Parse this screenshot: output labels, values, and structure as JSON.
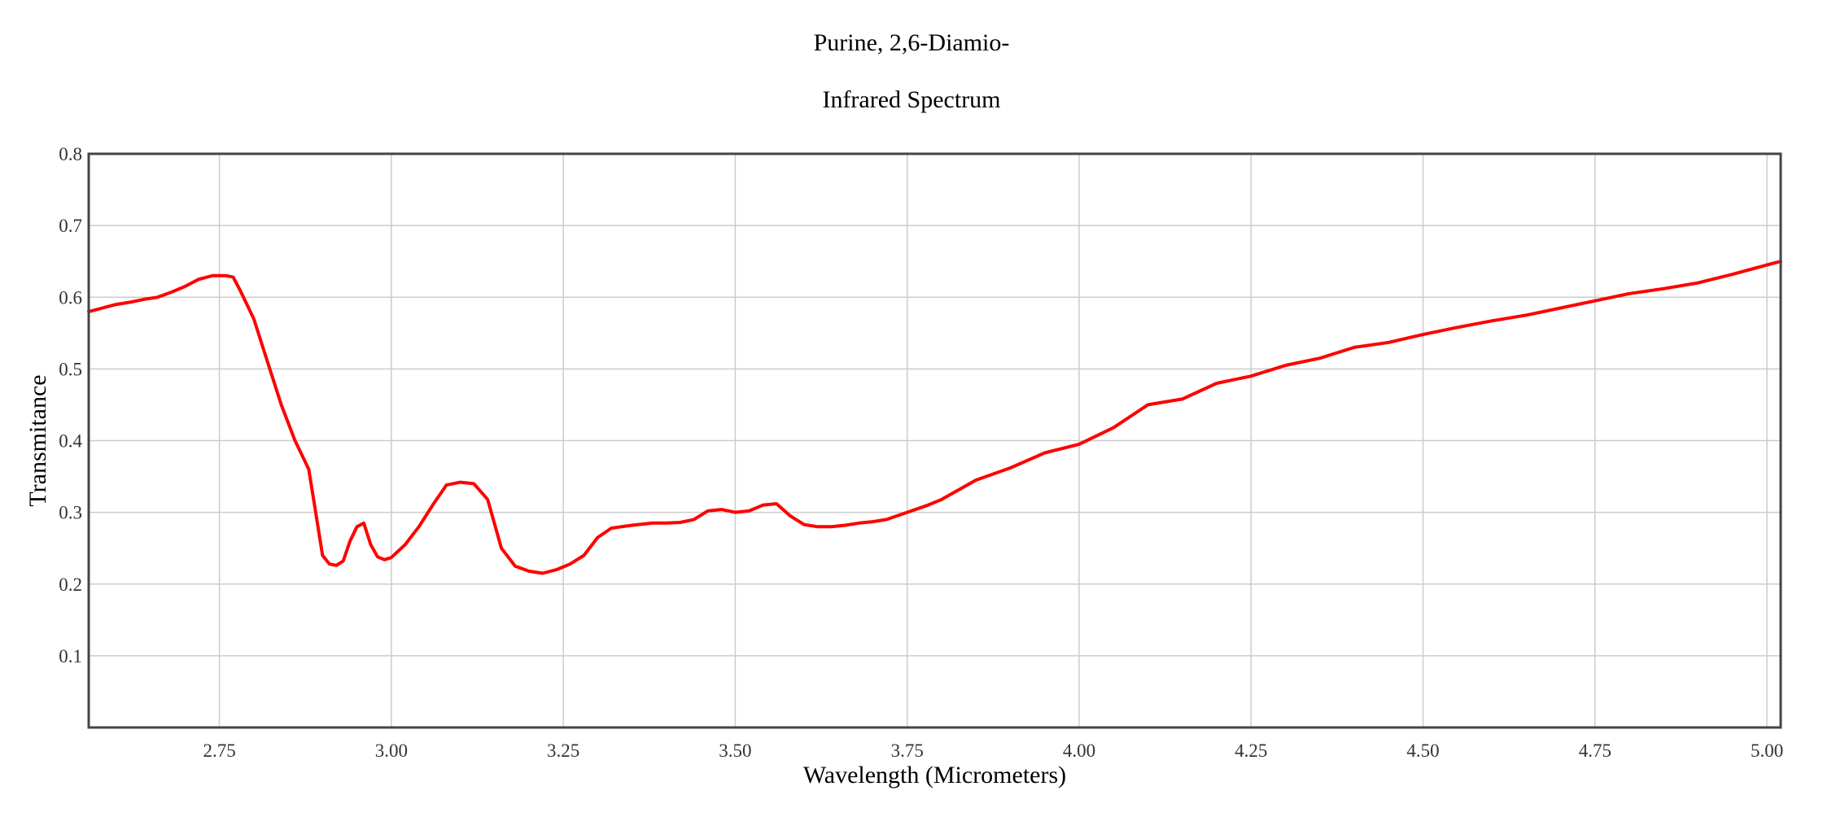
{
  "chart_data": {
    "type": "line",
    "title": "Purine, 2,6-Diamio-",
    "subtitle": "Infrared Spectrum",
    "xlabel": "Wavelength (Micrometers)",
    "ylabel": "Transmitance",
    "xlim": [
      2.56,
      5.02
    ],
    "ylim": [
      0.0,
      0.8
    ],
    "x_ticks": [
      2.75,
      3.0,
      3.25,
      3.5,
      3.75,
      4.0,
      4.25,
      4.5,
      4.75,
      5.0
    ],
    "x_tick_labels": [
      "2.75",
      "3.00",
      "3.25",
      "3.50",
      "3.75",
      "4.00",
      "4.25",
      "4.50",
      "4.75",
      "5.00"
    ],
    "y_ticks": [
      0.1,
      0.2,
      0.3,
      0.4,
      0.5,
      0.6,
      0.7,
      0.8
    ],
    "y_tick_labels": [
      "0.1",
      "0.2",
      "0.3",
      "0.4",
      "0.5",
      "0.6",
      "0.7",
      "0.8"
    ],
    "grid": true,
    "line_color": "#ff0000",
    "series": [
      {
        "x": [
          2.56,
          2.58,
          2.6,
          2.62,
          2.64,
          2.66,
          2.68,
          2.7,
          2.72,
          2.74,
          2.76,
          2.77,
          2.78,
          2.8,
          2.82,
          2.84,
          2.86,
          2.87,
          2.88,
          2.89,
          2.9,
          2.91,
          2.92,
          2.93,
          2.94,
          2.95,
          2.96,
          2.97,
          2.98,
          2.99,
          3.0,
          3.02,
          3.04,
          3.06,
          3.08,
          3.1,
          3.12,
          3.14,
          3.16,
          3.18,
          3.2,
          3.22,
          3.24,
          3.26,
          3.28,
          3.3,
          3.32,
          3.35,
          3.38,
          3.4,
          3.42,
          3.44,
          3.46,
          3.48,
          3.5,
          3.52,
          3.54,
          3.56,
          3.58,
          3.6,
          3.62,
          3.64,
          3.66,
          3.68,
          3.7,
          3.72,
          3.75,
          3.78,
          3.8,
          3.85,
          3.9,
          3.95,
          4.0,
          4.05,
          4.1,
          4.15,
          4.2,
          4.25,
          4.3,
          4.35,
          4.4,
          4.45,
          4.5,
          4.55,
          4.6,
          4.65,
          4.7,
          4.75,
          4.8,
          4.85,
          4.9,
          4.95,
          5.0,
          5.02
        ],
        "y": [
          0.58,
          0.585,
          0.59,
          0.593,
          0.597,
          0.6,
          0.607,
          0.615,
          0.625,
          0.63,
          0.63,
          0.628,
          0.61,
          0.57,
          0.51,
          0.45,
          0.4,
          0.38,
          0.36,
          0.3,
          0.24,
          0.228,
          0.226,
          0.232,
          0.26,
          0.28,
          0.285,
          0.255,
          0.238,
          0.234,
          0.237,
          0.255,
          0.28,
          0.31,
          0.338,
          0.342,
          0.34,
          0.318,
          0.25,
          0.225,
          0.218,
          0.215,
          0.22,
          0.228,
          0.24,
          0.265,
          0.278,
          0.282,
          0.285,
          0.285,
          0.286,
          0.29,
          0.302,
          0.304,
          0.3,
          0.302,
          0.31,
          0.312,
          0.295,
          0.283,
          0.28,
          0.28,
          0.282,
          0.285,
          0.287,
          0.29,
          0.3,
          0.31,
          0.318,
          0.345,
          0.362,
          0.383,
          0.395,
          0.418,
          0.45,
          0.458,
          0.48,
          0.49,
          0.505,
          0.515,
          0.53,
          0.537,
          0.548,
          0.558,
          0.567,
          0.575,
          0.585,
          0.595,
          0.605,
          0.612,
          0.62,
          0.632,
          0.645,
          0.65
        ]
      }
    ]
  }
}
